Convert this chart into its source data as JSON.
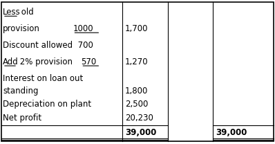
{
  "figsize": [
    3.98,
    2.08
  ],
  "dpi": 100,
  "bg_color": "#ffffff",
  "col_boundaries": [
    0.0,
    0.445,
    0.61,
    0.775,
    1.0
  ],
  "border_color": "#000000",
  "line_color": "#000000",
  "text_color": "#000000",
  "font_family": "DejaVu Sans",
  "fontsize": 8.5
}
